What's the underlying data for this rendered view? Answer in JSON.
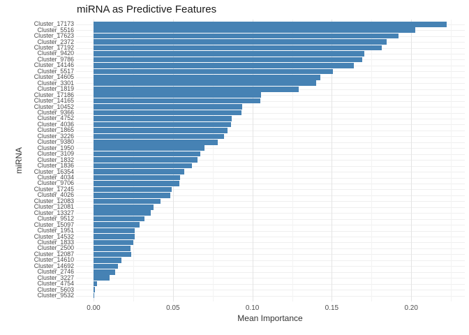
{
  "title": "miRNA as Predictive Features",
  "chart_data": {
    "type": "bar",
    "orientation": "horizontal",
    "title": "miRNA as Predictive Features",
    "xlabel": "Mean Importance",
    "ylabel": "miRNA",
    "xlim": [
      -0.011,
      0.2335
    ],
    "x_ticks": [
      0.0,
      0.05,
      0.1,
      0.15,
      0.2
    ],
    "x_tick_labels": [
      "0.00",
      "0.05",
      "0.10",
      "0.15",
      "0.20"
    ],
    "minor_ticks": [
      0.025,
      0.075,
      0.125,
      0.175,
      0.225
    ],
    "grid": true,
    "legend": "none",
    "bar_color": "#4682B4",
    "categories": [
      "Cluster_17173",
      "Cluster_5516",
      "Cluster_17623",
      "Cluster_2372",
      "Cluster_17192",
      "Cluster_9420",
      "Cluster_9786",
      "Cluster_14146",
      "Cluster_5517",
      "Cluster_14605",
      "Cluster_3301",
      "Cluster_1819",
      "Cluster_17186",
      "Cluster_14165",
      "Cluster_10452",
      "Cluster_9366",
      "Cluster_4752",
      "Cluster_4036",
      "Cluster_1865",
      "Cluster_3226",
      "Cluster_9380",
      "Cluster_1950",
      "Cluster_3109",
      "Cluster_1832",
      "Cluster_1836",
      "Cluster_16354",
      "Cluster_4034",
      "Cluster_9706",
      "Cluster_17245",
      "Cluster_4026",
      "Cluster_12083",
      "Cluster_12081",
      "Cluster_13327",
      "Cluster_9512",
      "Cluster_15097",
      "Cluster_1951",
      "Cluster_14532",
      "Cluster_1833",
      "Cluster_2500",
      "Cluster_12087",
      "Cluster_14610",
      "Cluster_14692",
      "Cluster_2746",
      "Cluster_3227",
      "Cluster_4754",
      "Cluster_5603",
      "Cluster_9532"
    ],
    "values": [
      0.2223,
      0.2026,
      0.192,
      0.1845,
      0.1815,
      0.1705,
      0.1692,
      0.1639,
      0.1507,
      0.1428,
      0.1402,
      0.1292,
      0.1055,
      0.105,
      0.0937,
      0.0932,
      0.087,
      0.0864,
      0.0844,
      0.0822,
      0.0782,
      0.0697,
      0.0674,
      0.0655,
      0.0621,
      0.0573,
      0.0546,
      0.0539,
      0.0491,
      0.0485,
      0.0422,
      0.0378,
      0.0359,
      0.0319,
      0.029,
      0.0261,
      0.0261,
      0.025,
      0.0234,
      0.0236,
      0.0177,
      0.0155,
      0.0136,
      0.01,
      0.0022,
      0.0009,
      0.0003
    ]
  },
  "colors": {
    "bar": "#4682B4",
    "grid_major": "#e4e4e4",
    "grid_minor": "#f3f3f3",
    "grid_row": "#efefef",
    "title_text": "#1a1a1a",
    "axis_text": "#4d4d4d",
    "background": "#ffffff"
  }
}
